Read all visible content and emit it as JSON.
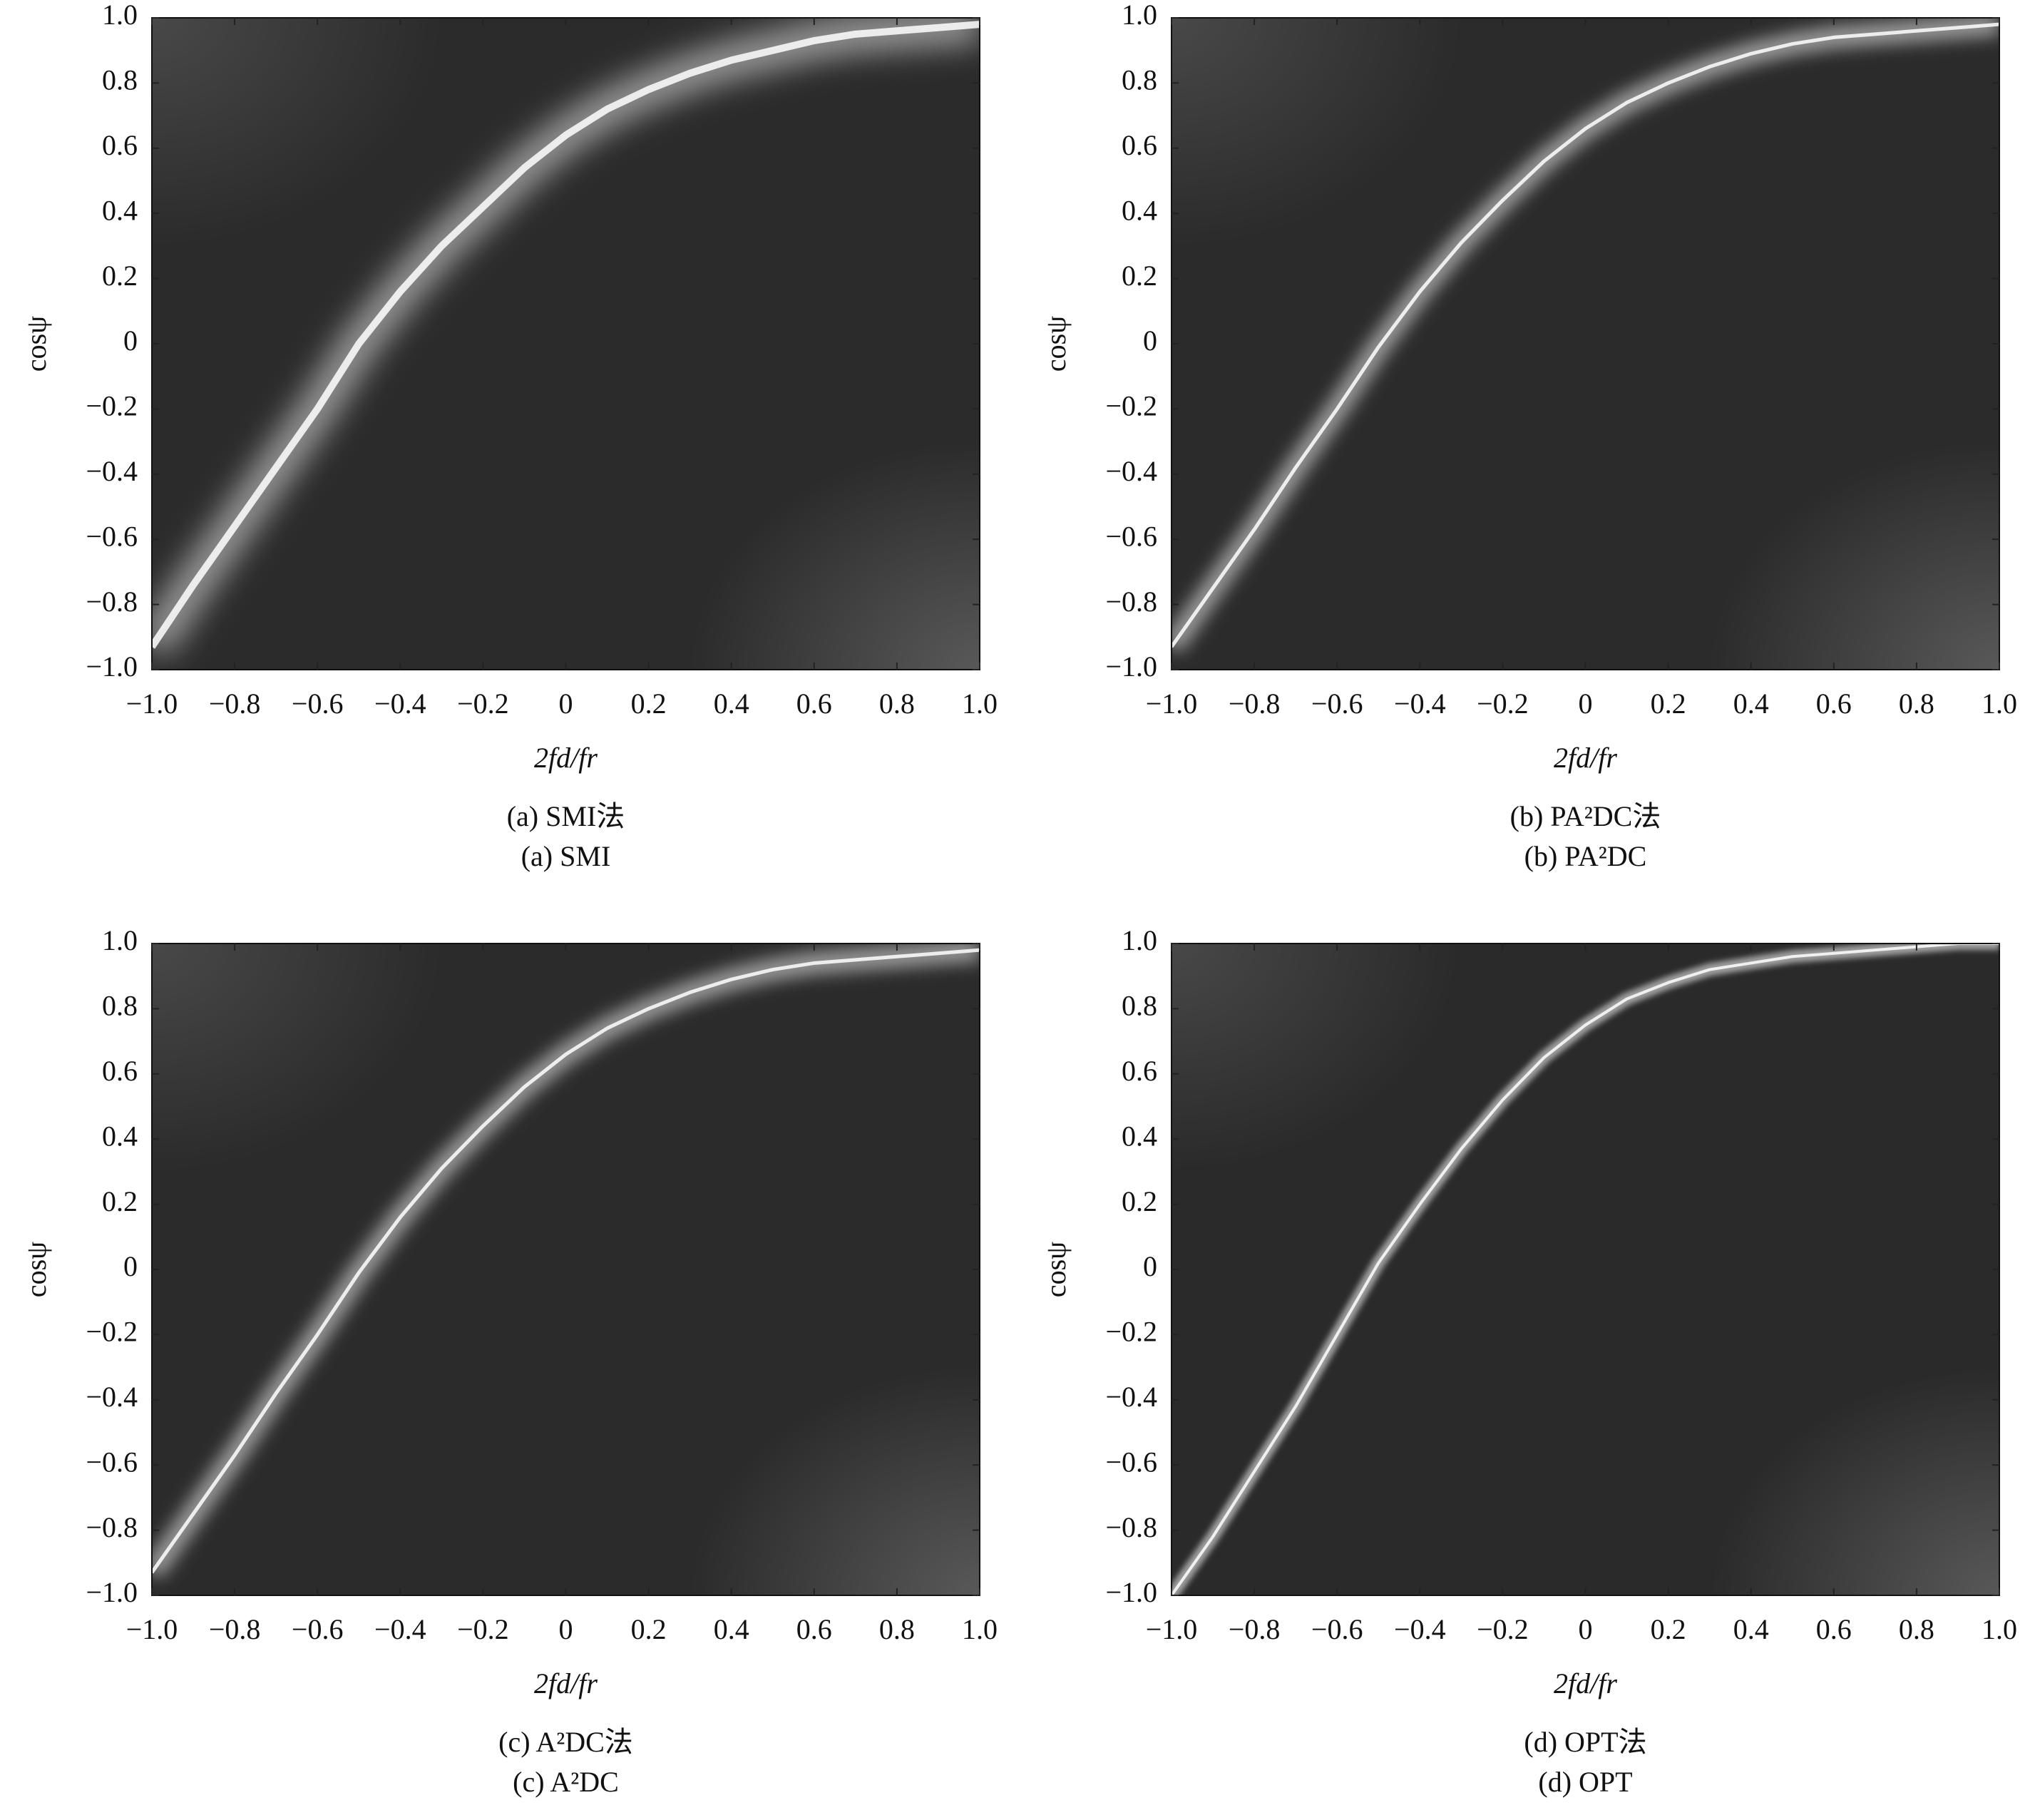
{
  "chart_data": [
    {
      "type": "heatmap",
      "xlabel": "2fd/fr",
      "ylabel": "cosψ",
      "caption": "(a) SMI法",
      "caption_en": "(a) SMI",
      "xlim": [
        -1,
        1
      ],
      "ylim": [
        -1,
        1
      ],
      "xticks": [
        {
          "value": -1,
          "label": "−1.0"
        },
        {
          "value": -0.8,
          "label": "−0.8"
        },
        {
          "value": -0.6,
          "label": "−0.6"
        },
        {
          "value": -0.4,
          "label": "−0.4"
        },
        {
          "value": -0.2,
          "label": "−0.2"
        },
        0,
        0.2,
        0.4,
        0.6,
        0.8,
        {
          "value": 1,
          "label": "1.0"
        }
      ],
      "yticks": [
        {
          "value": -1,
          "label": "−1.0"
        },
        {
          "value": -0.8,
          "label": "−0.8"
        },
        {
          "value": -0.6,
          "label": "−0.6"
        },
        {
          "value": -0.4,
          "label": "−0.4"
        },
        {
          "value": -0.2,
          "label": "−0.2"
        },
        0,
        0.2,
        0.4,
        0.6,
        0.8,
        {
          "value": 1,
          "label": "1.0"
        }
      ],
      "x": [
        -1,
        -0.9,
        -0.8,
        -0.7,
        -0.6,
        -0.5,
        -0.4,
        -0.3,
        -0.2,
        -0.1,
        0,
        0.1,
        0.2,
        0.3,
        0.4,
        0.5,
        0.6,
        0.7,
        0.8,
        0.9,
        1
      ],
      "values": [
        -0.93,
        -0.74,
        -0.56,
        -0.38,
        -0.2,
        0.0,
        0.16,
        0.3,
        0.42,
        0.54,
        0.64,
        0.72,
        0.78,
        0.83,
        0.87,
        0.9,
        0.93,
        0.95,
        0.96,
        0.97,
        0.98
      ],
      "color": "#ffffff",
      "background": "#2b2b2b"
    },
    {
      "type": "heatmap",
      "xlabel": "2fd/fr",
      "ylabel": "cosψ",
      "caption": "(b) PA²DC法",
      "caption_en": "(b) PA²DC",
      "xlim": [
        -1,
        1
      ],
      "ylim": [
        -1,
        1
      ],
      "xticks": [
        {
          "value": -1,
          "label": "−1.0"
        },
        {
          "value": -0.8,
          "label": "−0.8"
        },
        {
          "value": -0.6,
          "label": "−0.6"
        },
        {
          "value": -0.4,
          "label": "−0.4"
        },
        {
          "value": -0.2,
          "label": "−0.2"
        },
        0,
        0.2,
        0.4,
        0.6,
        0.8,
        {
          "value": 1,
          "label": "1.0"
        }
      ],
      "yticks": [
        {
          "value": -1,
          "label": "−1.0"
        },
        {
          "value": -0.8,
          "label": "−0.8"
        },
        {
          "value": -0.6,
          "label": "−0.6"
        },
        {
          "value": -0.4,
          "label": "−0.4"
        },
        {
          "value": -0.2,
          "label": "−0.2"
        },
        0,
        0.2,
        0.4,
        0.6,
        0.8,
        {
          "value": 1,
          "label": "1.0"
        }
      ],
      "x": [
        -1,
        -0.9,
        -0.8,
        -0.7,
        -0.6,
        -0.5,
        -0.4,
        -0.3,
        -0.2,
        -0.1,
        0,
        0.1,
        0.2,
        0.3,
        0.4,
        0.5,
        0.6,
        0.7,
        0.8,
        0.9,
        1
      ],
      "values": [
        -0.93,
        -0.75,
        -0.57,
        -0.38,
        -0.2,
        -0.01,
        0.16,
        0.31,
        0.44,
        0.56,
        0.66,
        0.74,
        0.8,
        0.85,
        0.89,
        0.92,
        0.94,
        0.95,
        0.96,
        0.97,
        0.98
      ],
      "color": "#ffffff",
      "background": "#2b2b2b"
    },
    {
      "type": "heatmap",
      "xlabel": "2fd/fr",
      "ylabel": "cosψ",
      "caption": "(c) A²DC法",
      "caption_en": "(c) A²DC",
      "xlim": [
        -1,
        1
      ],
      "ylim": [
        -1,
        1
      ],
      "xticks": [
        {
          "value": -1,
          "label": "−1.0"
        },
        {
          "value": -0.8,
          "label": "−0.8"
        },
        {
          "value": -0.6,
          "label": "−0.6"
        },
        {
          "value": -0.4,
          "label": "−0.4"
        },
        {
          "value": -0.2,
          "label": "−0.2"
        },
        0,
        0.2,
        0.4,
        0.6,
        0.8,
        {
          "value": 1,
          "label": "1.0"
        }
      ],
      "yticks": [
        {
          "value": -1,
          "label": "−1.0"
        },
        {
          "value": -0.8,
          "label": "−0.8"
        },
        {
          "value": -0.6,
          "label": "−0.6"
        },
        {
          "value": -0.4,
          "label": "−0.4"
        },
        {
          "value": -0.2,
          "label": "−0.2"
        },
        0,
        0.2,
        0.4,
        0.6,
        0.8,
        {
          "value": 1,
          "label": "1.0"
        }
      ],
      "x": [
        -1,
        -0.9,
        -0.8,
        -0.7,
        -0.6,
        -0.5,
        -0.4,
        -0.3,
        -0.2,
        -0.1,
        0,
        0.1,
        0.2,
        0.3,
        0.4,
        0.5,
        0.6,
        0.7,
        0.8,
        0.9,
        1
      ],
      "values": [
        -0.93,
        -0.75,
        -0.57,
        -0.38,
        -0.2,
        -0.01,
        0.16,
        0.31,
        0.44,
        0.56,
        0.66,
        0.74,
        0.8,
        0.85,
        0.89,
        0.92,
        0.94,
        0.95,
        0.96,
        0.97,
        0.98
      ],
      "color": "#ffffff",
      "background": "#2b2b2b"
    },
    {
      "type": "heatmap",
      "xlabel": "2fd/fr",
      "ylabel": "cosψ",
      "caption": "(d) OPT法",
      "caption_en": "(d) OPT",
      "xlim": [
        -1,
        1
      ],
      "ylim": [
        -1,
        1
      ],
      "xticks": [
        {
          "value": -1,
          "label": "−1.0"
        },
        {
          "value": -0.8,
          "label": "−0.8"
        },
        {
          "value": -0.6,
          "label": "−0.6"
        },
        {
          "value": -0.4,
          "label": "−0.4"
        },
        {
          "value": -0.2,
          "label": "−0.2"
        },
        0,
        0.2,
        0.4,
        0.6,
        0.8,
        {
          "value": 1,
          "label": "1.0"
        }
      ],
      "yticks": [
        {
          "value": -1,
          "label": "−1.0"
        },
        {
          "value": -0.8,
          "label": "−0.8"
        },
        {
          "value": -0.6,
          "label": "−0.6"
        },
        {
          "value": -0.4,
          "label": "−0.4"
        },
        {
          "value": -0.2,
          "label": "−0.2"
        },
        0,
        0.2,
        0.4,
        0.6,
        0.8,
        {
          "value": 1,
          "label": "1.0"
        }
      ],
      "x": [
        -1,
        -0.9,
        -0.8,
        -0.7,
        -0.6,
        -0.5,
        -0.4,
        -0.3,
        -0.2,
        -0.1,
        0,
        0.1,
        0.2,
        0.3,
        0.4,
        0.5,
        0.6,
        0.7,
        0.8,
        0.9,
        1
      ],
      "values": [
        -1.0,
        -0.82,
        -0.62,
        -0.42,
        -0.2,
        0.02,
        0.2,
        0.37,
        0.52,
        0.65,
        0.75,
        0.83,
        0.88,
        0.92,
        0.94,
        0.96,
        0.97,
        0.98,
        0.99,
        1.0,
        1.0
      ],
      "color": "#ffffff",
      "background": "#2a2a2a"
    }
  ]
}
